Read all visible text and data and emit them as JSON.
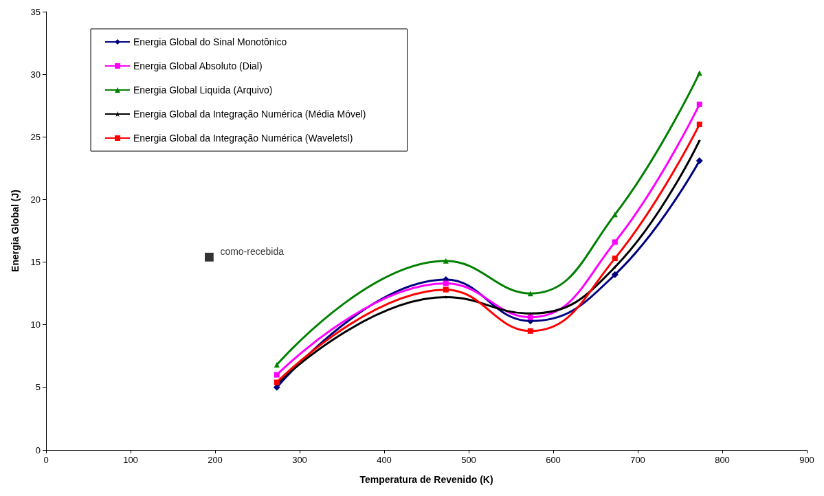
{
  "chart_data": {
    "type": "line",
    "xlabel": "Temperatura de Revenido (K)",
    "ylabel": "Energia Global (J)",
    "xlim": [
      0,
      900
    ],
    "xticks": [
      0,
      100,
      200,
      300,
      400,
      500,
      600,
      700,
      800,
      900
    ],
    "ylim": [
      0,
      35
    ],
    "yticks": [
      0,
      5,
      10,
      15,
      20,
      25,
      30,
      35
    ],
    "grid": false,
    "legend": "top left",
    "series": [
      {
        "name": "Energia Global do Sinal Monotônico",
        "color": "#000080",
        "marker": "diamond",
        "x": [
          273,
          473,
          573,
          673,
          773
        ],
        "values": [
          5.0,
          13.6,
          10.3,
          14.0,
          23.1
        ]
      },
      {
        "name": "Energia Global Absoluto (Dial)",
        "color": "#ff00ff",
        "marker": "square",
        "x": [
          273,
          473,
          573,
          673,
          773
        ],
        "values": [
          6.0,
          13.3,
          10.6,
          16.6,
          27.6
        ]
      },
      {
        "name": "Energia Global Liquida (Arquivo)",
        "color": "#008000",
        "marker": "triangle",
        "x": [
          273,
          473,
          573,
          673,
          773
        ],
        "values": [
          6.8,
          15.1,
          12.5,
          18.8,
          30.1
        ]
      },
      {
        "name": "Energia Global da Integração Numérica (Média Móvel)",
        "color": "#000000",
        "marker": "star",
        "x": [
          273,
          473,
          573,
          673,
          773
        ],
        "values": [
          5.3,
          12.2,
          10.9,
          14.6,
          24.7
        ]
      },
      {
        "name": "Energia Global da Integração Numérica (Waveletsl)",
        "color": "#ff0000",
        "marker": "square",
        "x": [
          273,
          473,
          573,
          673,
          773
        ],
        "values": [
          5.4,
          12.8,
          9.5,
          15.3,
          26.0
        ]
      },
      {
        "type": "scatter",
        "color": "#000000",
        "marker": "square",
        "x": [
          193
        ],
        "values": [
          15.4
        ]
      }
    ],
    "annotations": [
      {
        "text": "como-recebida",
        "x": 193,
        "y": 15.4
      }
    ]
  }
}
